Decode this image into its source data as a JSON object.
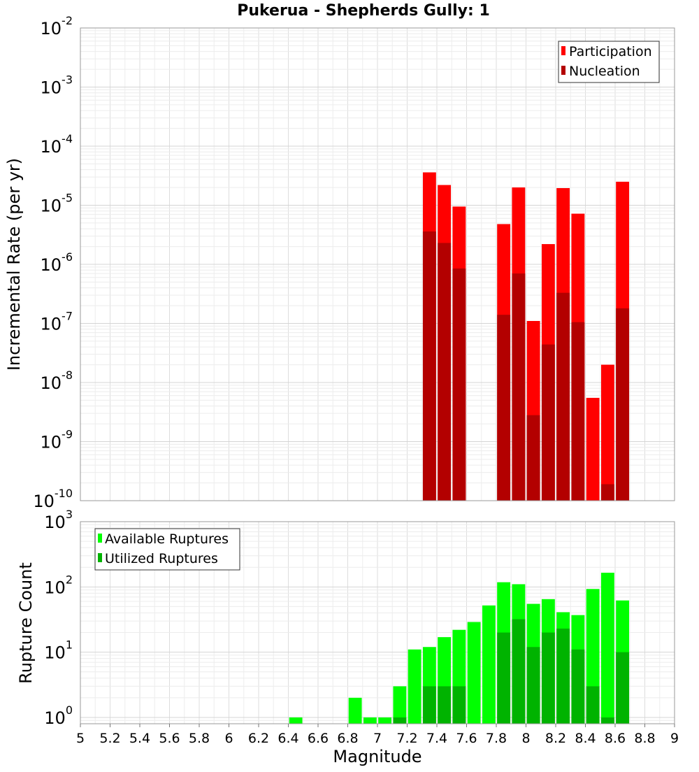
{
  "chart_data": [
    {
      "type": "bar",
      "title": "Pukerua - Shepherds Gully: 1",
      "xlabel": "",
      "ylabel": "Incremental Rate (per yr)",
      "y_scale": "log",
      "ylim": [
        1e-10,
        0.01
      ],
      "xlim": [
        5,
        9
      ],
      "bar_width": 0.1,
      "legend_position": "top-right",
      "colors": {
        "Participation": "#ff0000",
        "Nucleation": "#b30000"
      },
      "series": [
        {
          "name": "Participation",
          "x": [
            7.35,
            7.45,
            7.55,
            7.85,
            7.95,
            8.05,
            8.15,
            8.25,
            8.35,
            8.45,
            8.55,
            8.65
          ],
          "values": [
            3.6e-05,
            2.2e-05,
            9.5e-06,
            4.8e-06,
            2e-05,
            1.1e-07,
            2.2e-06,
            1.95e-05,
            7.2e-06,
            5.5e-09,
            2e-08,
            2.5e-05
          ]
        },
        {
          "name": "Nucleation",
          "x": [
            7.35,
            7.45,
            7.55,
            7.85,
            7.95,
            8.05,
            8.15,
            8.25,
            8.35,
            8.45,
            8.55,
            8.65
          ],
          "values": [
            3.6e-06,
            2.3e-06,
            8.5e-07,
            1.4e-07,
            7e-07,
            2.8e-09,
            4.4e-08,
            3.3e-07,
            1.05e-07,
            1e-10,
            1.9e-10,
            1.8e-07
          ]
        }
      ],
      "y_ticks": [
        {
          "value": 0.01,
          "base": "10",
          "exp": "-2"
        },
        {
          "value": 0.001,
          "base": "10",
          "exp": "-3"
        },
        {
          "value": 0.0001,
          "base": "10",
          "exp": "-4"
        },
        {
          "value": 1e-05,
          "base": "10",
          "exp": "-5"
        },
        {
          "value": 1e-06,
          "base": "10",
          "exp": "-6"
        },
        {
          "value": 1e-07,
          "base": "10",
          "exp": "-7"
        },
        {
          "value": 1e-08,
          "base": "10",
          "exp": "-8"
        },
        {
          "value": 1e-09,
          "base": "10",
          "exp": "-9"
        },
        {
          "value": 1e-10,
          "base": "10",
          "exp": "-10"
        }
      ]
    },
    {
      "type": "bar",
      "title": "",
      "xlabel": "Magnitude",
      "ylabel": "Rupture Count",
      "y_scale": "log",
      "ylim": [
        0.8,
        1000
      ],
      "xlim": [
        5,
        9
      ],
      "bar_width": 0.1,
      "legend_position": "top-left",
      "colors": {
        "Available Ruptures": "#00ff00",
        "Utilized Ruptures": "#00b300"
      },
      "series": [
        {
          "name": "Available Ruptures",
          "x": [
            6.45,
            6.85,
            6.95,
            7.05,
            7.15,
            7.25,
            7.35,
            7.45,
            7.55,
            7.65,
            7.75,
            7.85,
            7.95,
            8.05,
            8.15,
            8.25,
            8.35,
            8.45,
            8.55,
            8.65
          ],
          "values": [
            1,
            2,
            1,
            1,
            3,
            11,
            12,
            17,
            22,
            29,
            52,
            118,
            110,
            55,
            65,
            41,
            37,
            93,
            165,
            62
          ]
        },
        {
          "name": "Utilized Ruptures",
          "x": [
            7.15,
            7.35,
            7.45,
            7.55,
            7.85,
            7.95,
            8.05,
            8.15,
            8.25,
            8.35,
            8.45,
            8.55,
            8.65
          ],
          "values": [
            1,
            3,
            3,
            3,
            20,
            32,
            12,
            20,
            23,
            11,
            3,
            1,
            10
          ]
        }
      ],
      "y_ticks": [
        {
          "value": 1000,
          "base": "10",
          "exp": "3"
        },
        {
          "value": 100,
          "base": "10",
          "exp": "2"
        },
        {
          "value": 10,
          "base": "10",
          "exp": "1"
        },
        {
          "value": 1,
          "base": "10",
          "exp": "0"
        }
      ],
      "x_ticks": [
        5,
        5.2,
        5.4,
        5.6,
        5.8,
        6,
        6.2,
        6.4,
        6.6,
        6.8,
        7,
        7.2,
        7.4,
        7.6,
        7.8,
        8,
        8.2,
        8.4,
        8.6,
        8.8,
        9
      ],
      "x_tick_labels": [
        "5",
        "5.2",
        "5.4",
        "5.6",
        "5.8",
        "6",
        "6.2",
        "6.4",
        "6.6",
        "6.8",
        "7",
        "7.2",
        "7.4",
        "7.6",
        "7.8",
        "8",
        "8.2",
        "8.4",
        "8.6",
        "8.8",
        "9"
      ]
    }
  ]
}
